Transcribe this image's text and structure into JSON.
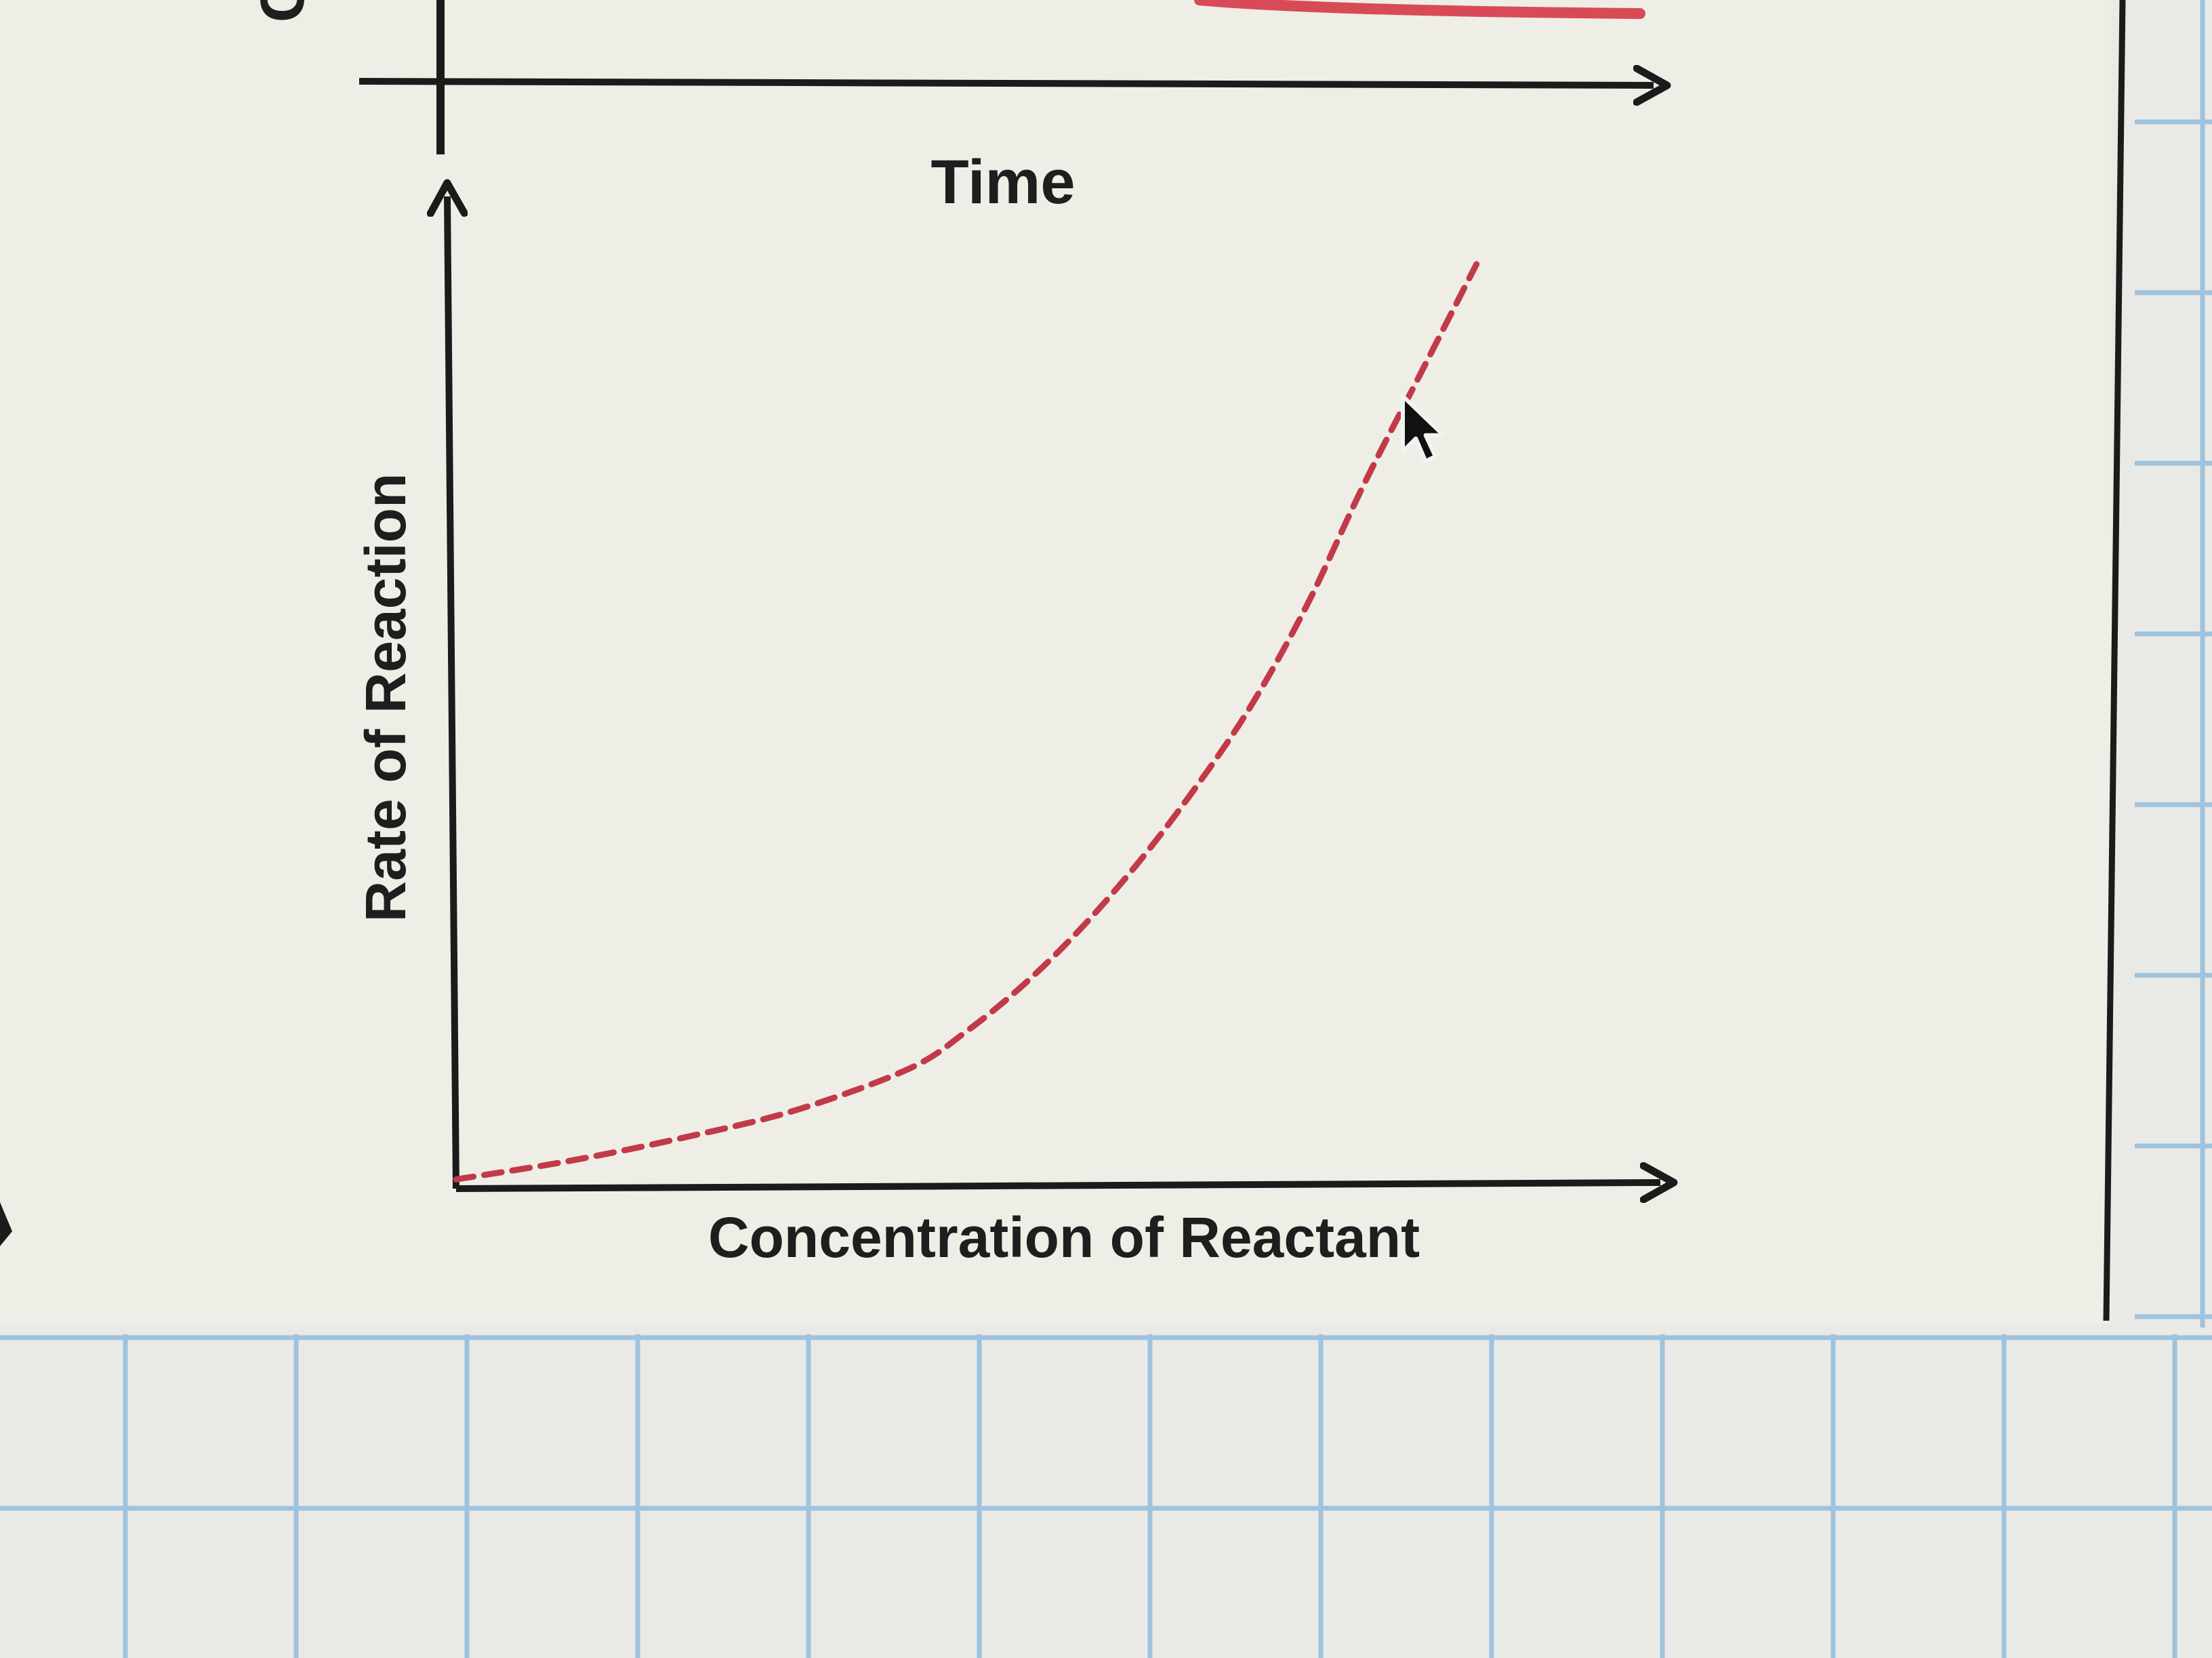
{
  "colors": {
    "paper": "#efeee6",
    "grid_background": "#e9e9e6",
    "grid_lines": "#9ec3dc",
    "axis": "#1b1b1b",
    "curve": "#c23a48",
    "text": "#1e1e1e"
  },
  "top_chart": {
    "xlabel": "Time",
    "ylabel_fragment": "C",
    "series_color": "#d94a57"
  },
  "chart_data": {
    "type": "line",
    "title": "",
    "xlabel": "Concentration of Reactant",
    "ylabel": "Rate of Reaction",
    "line_style": "dashed",
    "grid": false,
    "xlim": [
      0,
      1
    ],
    "ylim": [
      0,
      1
    ],
    "series": [
      {
        "color": "#c23a48",
        "x": [
          0,
          0.1,
          0.2,
          0.3,
          0.4,
          0.45,
          0.5,
          0.55,
          0.6,
          0.65,
          0.7,
          0.75,
          0.8,
          0.85,
          0.9
        ],
        "y": [
          0.01,
          0.03,
          0.055,
          0.085,
          0.13,
          0.17,
          0.22,
          0.28,
          0.35,
          0.43,
          0.52,
          0.63,
          0.76,
          0.88,
          1.0
        ]
      }
    ]
  },
  "cursor": {
    "icon": "mouse-pointer-icon"
  }
}
